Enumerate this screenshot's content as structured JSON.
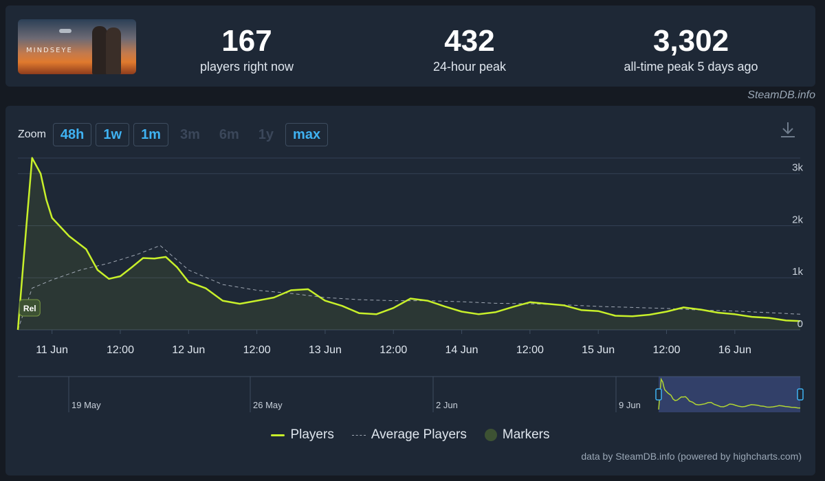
{
  "header": {
    "game_logo_text": "MINDSEYE",
    "stats": [
      {
        "value": "167",
        "label": "players right now"
      },
      {
        "value": "432",
        "label": "24-hour peak"
      },
      {
        "value": "3,302",
        "label": "all-time peak 5 days ago"
      }
    ],
    "credit": "SteamDB.info"
  },
  "chart": {
    "zoom_label": "Zoom",
    "zoom_buttons": [
      {
        "label": "48h",
        "enabled": true
      },
      {
        "label": "1w",
        "enabled": true
      },
      {
        "label": "1m",
        "enabled": true
      },
      {
        "label": "3m",
        "enabled": false
      },
      {
        "label": "6m",
        "enabled": false
      },
      {
        "label": "1y",
        "enabled": false
      },
      {
        "label": "max",
        "enabled": true
      }
    ],
    "download_icon": "download-icon",
    "marker_label": "Rel",
    "legend": {
      "players": "Players",
      "average": "Average Players",
      "markers": "Markers"
    },
    "navigator_labels": [
      "19 May",
      "26 May",
      "2 Jun",
      "9 Jun"
    ],
    "footer_credit": "data by SteamDB.info (powered by highcharts.com)",
    "colors": {
      "players": "#c8f02a",
      "average": "#a0a8b4",
      "marker": "#3d5233",
      "accent": "#3fb2f2"
    }
  },
  "chart_data": {
    "type": "line",
    "x_tick_labels": [
      "11 Jun",
      "12:00",
      "12 Jun",
      "12:00",
      "13 Jun",
      "12:00",
      "14 Jun",
      "12:00",
      "15 Jun",
      "12:00",
      "16 Jun"
    ],
    "y_tick_labels": [
      "0",
      "1k",
      "2k",
      "3k"
    ],
    "ylim": [
      0,
      3300
    ],
    "x_unit": "hours since 11 Jun 00:00",
    "series": [
      {
        "name": "Players",
        "x": [
          -6,
          -4.5,
          -3.5,
          -2,
          -1,
          0,
          3,
          6,
          8,
          10,
          12,
          14,
          16,
          18,
          20,
          22,
          24,
          27,
          30,
          33,
          36,
          39,
          42,
          45,
          48,
          51,
          54,
          57,
          60,
          63,
          66,
          69,
          72,
          75,
          78,
          81,
          84,
          87,
          90,
          93,
          96,
          99,
          102,
          105,
          108,
          111,
          114,
          117,
          120,
          123,
          126,
          129,
          131.5
        ],
        "values": [
          0,
          2000,
          3302,
          3000,
          2500,
          2150,
          1800,
          1550,
          1150,
          980,
          1030,
          1200,
          1380,
          1370,
          1400,
          1200,
          920,
          800,
          560,
          500,
          560,
          620,
          760,
          780,
          560,
          460,
          320,
          300,
          420,
          600,
          560,
          450,
          350,
          300,
          340,
          440,
          530,
          500,
          470,
          380,
          360,
          270,
          260,
          290,
          350,
          430,
          390,
          330,
          300,
          250,
          230,
          180,
          167
        ]
      },
      {
        "name": "Average Players",
        "x": [
          -6,
          -3.5,
          0,
          5,
          10,
          15,
          19,
          24,
          30,
          36,
          42,
          48,
          54,
          60,
          66,
          72,
          78,
          84,
          90,
          96,
          102,
          108,
          114,
          120,
          126,
          131.5
        ],
        "values": [
          0,
          800,
          960,
          1150,
          1280,
          1450,
          1620,
          1150,
          870,
          760,
          700,
          620,
          580,
          560,
          560,
          540,
          510,
          500,
          480,
          450,
          430,
          410,
          380,
          360,
          330,
          300
        ]
      }
    ],
    "markers": [
      {
        "x": -5,
        "label": "Rel"
      }
    ],
    "legend_position": "bottom-center",
    "grid": true
  }
}
